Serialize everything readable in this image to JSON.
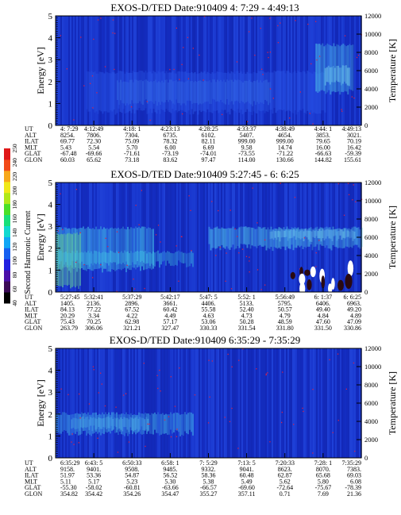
{
  "chart_data": [
    {
      "type": "heatmap",
      "title": "EXOS-D/TED   Date:910409  4: 7:29 - 4:49:13",
      "ylabel": "Energy [eV]",
      "ylabel_right": "Temperature [K]",
      "ylim": [
        0,
        5
      ],
      "ylim_right": [
        0,
        12000
      ],
      "yticks": [
        "0",
        "1",
        "2",
        "3",
        "4",
        "5"
      ],
      "yticks_right": [
        "0",
        "2000",
        "4000",
        "6000",
        "8000",
        "10000",
        "12000"
      ],
      "grid": false,
      "row_labels": [
        "UT",
        "ALT",
        "ILAT",
        "MLT",
        "GLAT",
        "GLON"
      ],
      "columns": [
        [
          "4: 7:29",
          "8254.",
          "69.77",
          "5.43",
          "-67.48",
          "60.03"
        ],
        [
          "4:12:49",
          "7806.",
          "72.30",
          "5.54",
          "-69.66",
          "65.62"
        ],
        [
          "4:18: 1",
          "7304.",
          "75.09",
          "5.70",
          "-71.61",
          "73.18"
        ],
        [
          "4:23:13",
          "6735.",
          "78.32",
          "6.00",
          "-73.19",
          "83.62"
        ],
        [
          "4:28:25",
          "6102.",
          "82.11",
          "6.69",
          "-74.01",
          "97.47"
        ],
        [
          "4:33:37",
          "5407.",
          "999.00",
          "9.58",
          "-73.55",
          "114.00"
        ],
        [
          "4:38:49",
          "4654.",
          "999.00",
          "14.74",
          "-71.22",
          "130.66"
        ],
        [
          "4:44: 1",
          "3853.",
          "79.65",
          "16.00",
          "-66.63",
          "144.82"
        ],
        [
          "4:49:13",
          "3021.",
          "70.19",
          "16.42",
          "-59.39",
          "155.61"
        ]
      ]
    },
    {
      "type": "heatmap",
      "title": "EXOS-D/TED   Date:910409  5:27:45 - 6: 6:25",
      "ylabel": "Energy [eV]",
      "ylabel_right": "Temperature [K]",
      "ylim": [
        0,
        5
      ],
      "ylim_right": [
        0,
        12000
      ],
      "yticks": [
        "0",
        "1",
        "2",
        "3",
        "4",
        "5"
      ],
      "yticks_right": [
        "0",
        "2000",
        "4000",
        "6000",
        "8000",
        "10000",
        "12000"
      ],
      "grid": false,
      "colorbar": {
        "label": "Second Harmonic Current",
        "ticks": [
          "40",
          "60",
          "80",
          "100",
          "120",
          "140",
          "160",
          "180",
          "200",
          "220",
          "240",
          "250"
        ]
      },
      "row_labels": [
        "UT",
        "ALT",
        "ILAT",
        "MLT",
        "GLAT",
        "GLON"
      ],
      "columns": [
        [
          "5:27:45",
          "1405.",
          "84.13",
          "20.29",
          "75.43",
          "263.79"
        ],
        [
          "5:32:41",
          "2136.",
          "77.22",
          "3.34",
          "70.25",
          "306.06"
        ],
        [
          "5:37:29",
          "2896.",
          "67.52",
          "4.22",
          "62.98",
          "321.21"
        ],
        [
          "5:42:17",
          "3661.",
          "60.42",
          "4.49",
          "57.17",
          "327.47"
        ],
        [
          "5:47: 5",
          "4406.",
          "55.58",
          "4.63",
          "53.06",
          "330.33"
        ],
        [
          "5:52: 1",
          "5133.",
          "52.40",
          "4.73",
          "50.28",
          "331.54"
        ],
        [
          "5:56:49",
          "5795.",
          "50.57",
          "4.79",
          "48.59",
          "331.80"
        ],
        [
          "6: 1:37",
          "6406.",
          "49.40",
          "4.84",
          "47.60",
          "331.50"
        ],
        [
          "6: 6:25",
          "6963.",
          "49.20",
          "4.89",
          "47.09",
          "330.86"
        ]
      ]
    },
    {
      "type": "heatmap",
      "title": "EXOS-D/TED   Date:910409  6:35:29 - 7:35:29",
      "ylabel": "Energy [eV]",
      "ylabel_right": "Temperature [K]",
      "ylim": [
        0,
        5
      ],
      "ylim_right": [
        0,
        12000
      ],
      "yticks": [
        "0",
        "1",
        "2",
        "3",
        "4",
        "5"
      ],
      "yticks_right": [
        "0",
        "2000",
        "4000",
        "6000",
        "8000",
        "10000",
        "12000"
      ],
      "grid": false,
      "row_labels": [
        "UT",
        "ALT",
        "ILAT",
        "MLT",
        "GLAT",
        "GLON"
      ],
      "columns": [
        [
          "6:35:29",
          "9158.",
          "51.97",
          "5.11",
          "-55.30",
          "354.82"
        ],
        [
          "6:43: 5",
          "9401.",
          "53.36",
          "5.17",
          "-58.02",
          "354.42"
        ],
        [
          "6:50:33",
          "9508.",
          "54.87",
          "5.23",
          "-60.81",
          "354.26"
        ],
        [
          "6:58: 1",
          "9485.",
          "56.52",
          "5.30",
          "-63.66",
          "354.47"
        ],
        [
          "7: 5:29",
          "9332.",
          "58.36",
          "5.38",
          "-66.57",
          "355.27"
        ],
        [
          "7:13: 5",
          "9041.",
          "60.48",
          "5.49",
          "-69.60",
          "357.11"
        ],
        [
          "7:20:33",
          "8623.",
          "62.87",
          "5.62",
          "-72.64",
          "0.71"
        ],
        [
          "7:28: 1",
          "8070.",
          "65.68",
          "5.80",
          "-75.67",
          "7.69"
        ],
        [
          "7:35:29",
          "7383.",
          "69.03",
          "6.08",
          "-78.39",
          "21.36"
        ]
      ]
    }
  ]
}
